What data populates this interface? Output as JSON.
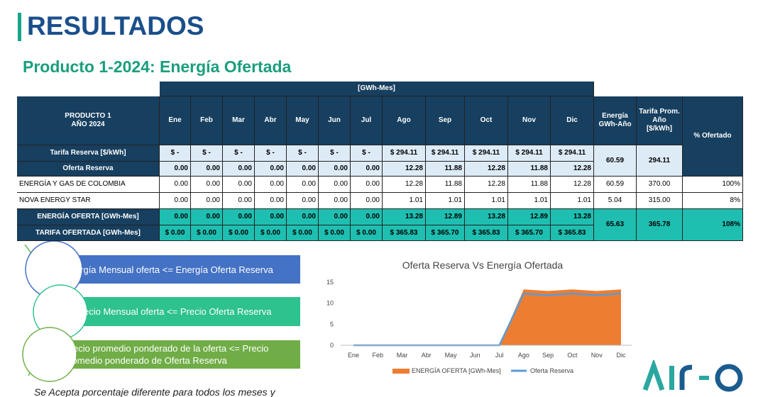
{
  "header": {
    "title": "RESULTADOS",
    "subtitle": "Producto 1-2024: Energía Ofertada"
  },
  "table": {
    "group_header": "[GWh-Mes]",
    "product_header": [
      "PRODUCTO 1",
      "AÑO 2024"
    ],
    "months": [
      "Ene",
      "Feb",
      "Mar",
      "Abr",
      "May",
      "Jun",
      "Jul",
      "Ago",
      "Sep",
      "Oct",
      "Nov",
      "Dic"
    ],
    "energy_header": [
      "Energía",
      "GWh-Año"
    ],
    "tariff_header": [
      "Tarifa Prom.",
      "Año [$/kWh]"
    ],
    "percent_header": "% Ofertado",
    "rows": [
      {
        "label": "Tarifa Reserva [$/kWh]",
        "cells": [
          "$ -",
          "$ -",
          "$ -",
          "$ -",
          "$ -",
          "$ -",
          "$ -",
          "$ 294.11",
          "$ 294.11",
          "$ 294.11",
          "$ 294.11",
          "$ 294.11"
        ],
        "energy": "60.59",
        "tariff": "294.11"
      },
      {
        "label": "Oferta Reserva",
        "cells": [
          "0.00",
          "0.00",
          "0.00",
          "0.00",
          "0.00",
          "0.00",
          "0.00",
          "12.28",
          "11.88",
          "12.28",
          "11.88",
          "12.28"
        ]
      },
      {
        "label": "ENERGÍA Y GAS DE COLOMBIA",
        "cells": [
          "0.00",
          "0.00",
          "0.00",
          "0.00",
          "0.00",
          "0.00",
          "0.00",
          "12.28",
          "11.88",
          "12.28",
          "11.88",
          "12.28"
        ],
        "energy": "60.59",
        "tariff": "370.00",
        "percent": "100%"
      },
      {
        "label": "NOVA ENERGY STAR",
        "cells": [
          "0.00",
          "0.00",
          "0.00",
          "0.00",
          "0.00",
          "0.00",
          "0.00",
          "1.01",
          "1.01",
          "1.01",
          "1.01",
          "1.01"
        ],
        "energy": "5.04",
        "tariff": "315.00",
        "percent": "8%"
      },
      {
        "label": "ENERGÍA OFERTA [GWh-Mes]",
        "cells": [
          "0.00",
          "0.00",
          "0.00",
          "0.00",
          "0.00",
          "0.00",
          "0.00",
          "13.28",
          "12.89",
          "13.28",
          "12.89",
          "13.28"
        ],
        "energy": "65.63",
        "tariff": "365.78",
        "percent": "108%"
      },
      {
        "label": "TARIFA OFERTADA [GWh-Mes]",
        "cells": [
          "$ 0.00",
          "$ 0.00",
          "$ 0.00",
          "$ 0.00",
          "$ 0.00",
          "$ 0.00",
          "$ 0.00",
          "$ 365.83",
          "$ 365.70",
          "$ 365.83",
          "$ 365.70",
          "$ 365.83"
        ]
      }
    ]
  },
  "bullets": [
    "Energía Mensual oferta <= Energía Oferta Reserva",
    "Precio Mensual oferta <= Precio Oferta Reserva",
    "Precio promedio ponderado de la oferta <= Precio promedio ponderado de Oferta Reserva"
  ],
  "chart_data": {
    "type": "area",
    "title": "Oferta Reserva Vs Energía Ofertada",
    "categories": [
      "Ene",
      "Feb",
      "Mar",
      "Abr",
      "May",
      "Jun",
      "Jul",
      "Ago",
      "Sep",
      "Oct",
      "Nov",
      "Dic"
    ],
    "series": [
      {
        "name": "ENERGÍA OFERTA [GWh-Mes]",
        "type": "area",
        "color": "#ed7d31",
        "values": [
          0,
          0,
          0,
          0,
          0,
          0,
          0,
          13.28,
          12.89,
          13.28,
          12.89,
          13.28
        ]
      },
      {
        "name": "Oferta Reserva",
        "type": "line",
        "color": "#5b9bd5",
        "values": [
          0,
          0,
          0,
          0,
          0,
          0,
          0,
          12.28,
          11.88,
          12.28,
          11.88,
          12.28
        ]
      }
    ],
    "ylim": [
      0,
      15
    ],
    "yticks": [
      0,
      5,
      10,
      15
    ],
    "legend": "bottom"
  },
  "footer_note": "Se Acepta porcentaje diferente para todos los meses y"
}
